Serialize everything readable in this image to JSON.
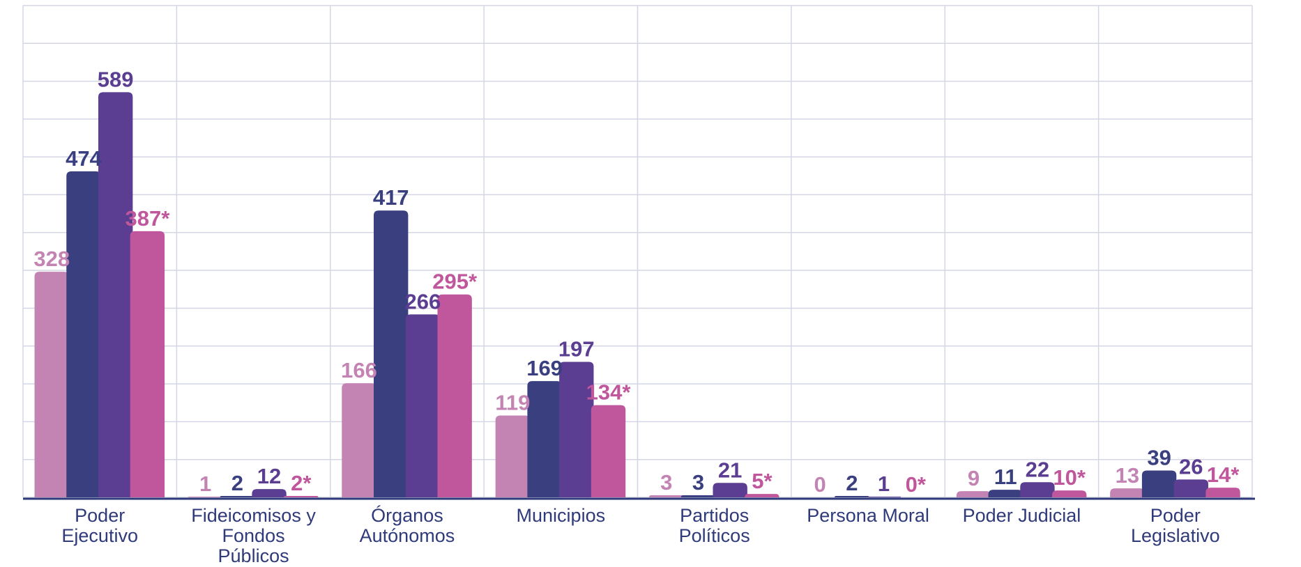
{
  "chart_data": {
    "type": "bar",
    "categories": [
      "Poder Ejecutivo",
      "Fideicomisos y Fondos Públicos",
      "Órganos Autónomos",
      "Municipios",
      "Partidos Políticos",
      "Persona Moral",
      "Poder Judicial",
      "Poder Legislativo"
    ],
    "series": [
      {
        "color": "#c484b3",
        "values": [
          328,
          1,
          166,
          119,
          3,
          0,
          9,
          13
        ]
      },
      {
        "color": "#3a3f80",
        "values": [
          474,
          2,
          417,
          169,
          3,
          2,
          11,
          39
        ]
      },
      {
        "color": "#5b3e91",
        "values": [
          589,
          12,
          266,
          197,
          21,
          1,
          22,
          26
        ]
      },
      {
        "color": "#c0569b",
        "values": [
          387,
          2,
          295,
          134,
          5,
          0,
          10,
          14
        ],
        "value_labels": [
          "387*",
          "2*",
          "295*",
          "134*",
          "5*",
          "0*",
          "10*",
          "14*"
        ]
      }
    ],
    "ylim": [
      0,
      715
    ],
    "yticks": [
      0,
      55,
      110,
      165,
      220,
      275,
      330,
      385,
      440,
      495,
      550,
      605,
      660,
      715
    ],
    "grid": true
  }
}
